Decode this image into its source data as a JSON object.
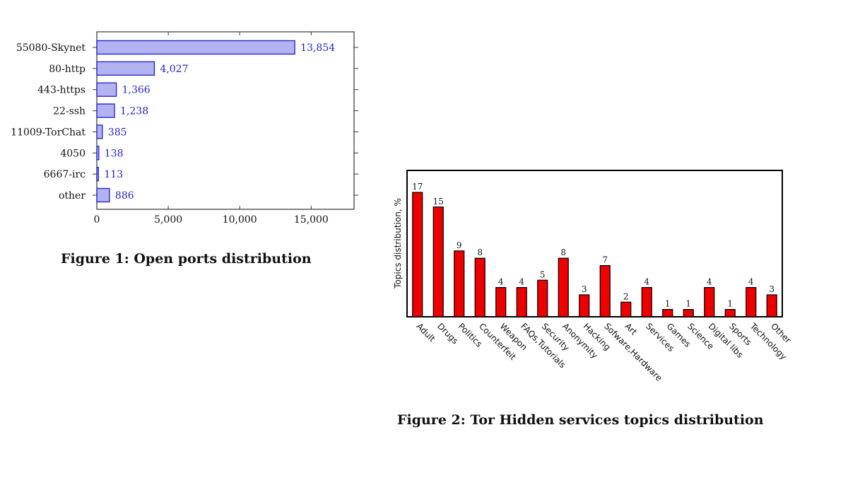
{
  "chart_data": [
    {
      "type": "bar",
      "orientation": "horizontal",
      "caption": "Figure 1: Open ports distribution",
      "categories": [
        "55080-Skynet",
        "80-http",
        "443-https",
        "22-ssh",
        "11009-TorChat",
        "4050",
        "6667-irc",
        "other"
      ],
      "values": [
        13854,
        4027,
        1366,
        1238,
        385,
        138,
        113,
        886
      ],
      "value_labels": [
        "13,854",
        "4,027",
        "1,366",
        "1,238",
        "385",
        "138",
        "113",
        "886"
      ],
      "xlim": [
        0,
        18000
      ],
      "x_ticks": [
        0,
        5000,
        10000,
        15000
      ],
      "x_tick_labels": [
        "0",
        "5,000",
        "10,000",
        "15,000"
      ],
      "xlabel": "",
      "ylabel": "",
      "grid": false,
      "colors": {
        "bar_fill": "#b3b3f2",
        "bar_stroke": "#2a2acc",
        "label": "#1f1fcc"
      }
    },
    {
      "type": "bar",
      "orientation": "vertical",
      "caption": "Figure 2: Tor Hidden services topics distribution",
      "categories": [
        "Adult",
        "Drugs",
        "Politics",
        "Counterfeit",
        "Weapon",
        "FAQs,Tutorials",
        "Security",
        "Anonymity",
        "Hacking",
        "Sofware,Hardware",
        "Art",
        "Services",
        "Games",
        "Science",
        "Digital libs",
        "Sports",
        "Technology",
        "Other"
      ],
      "values": [
        17,
        15,
        9,
        8,
        4,
        4,
        5,
        8,
        3,
        7,
        2,
        4,
        1,
        1,
        4,
        1,
        4,
        3
      ],
      "ylim": [
        0,
        20
      ],
      "xlabel": "",
      "ylabel": "Topics distribution, %",
      "grid": false,
      "colors": {
        "bar_fill": "#ee0000",
        "bar_stroke": "#000000"
      }
    }
  ]
}
